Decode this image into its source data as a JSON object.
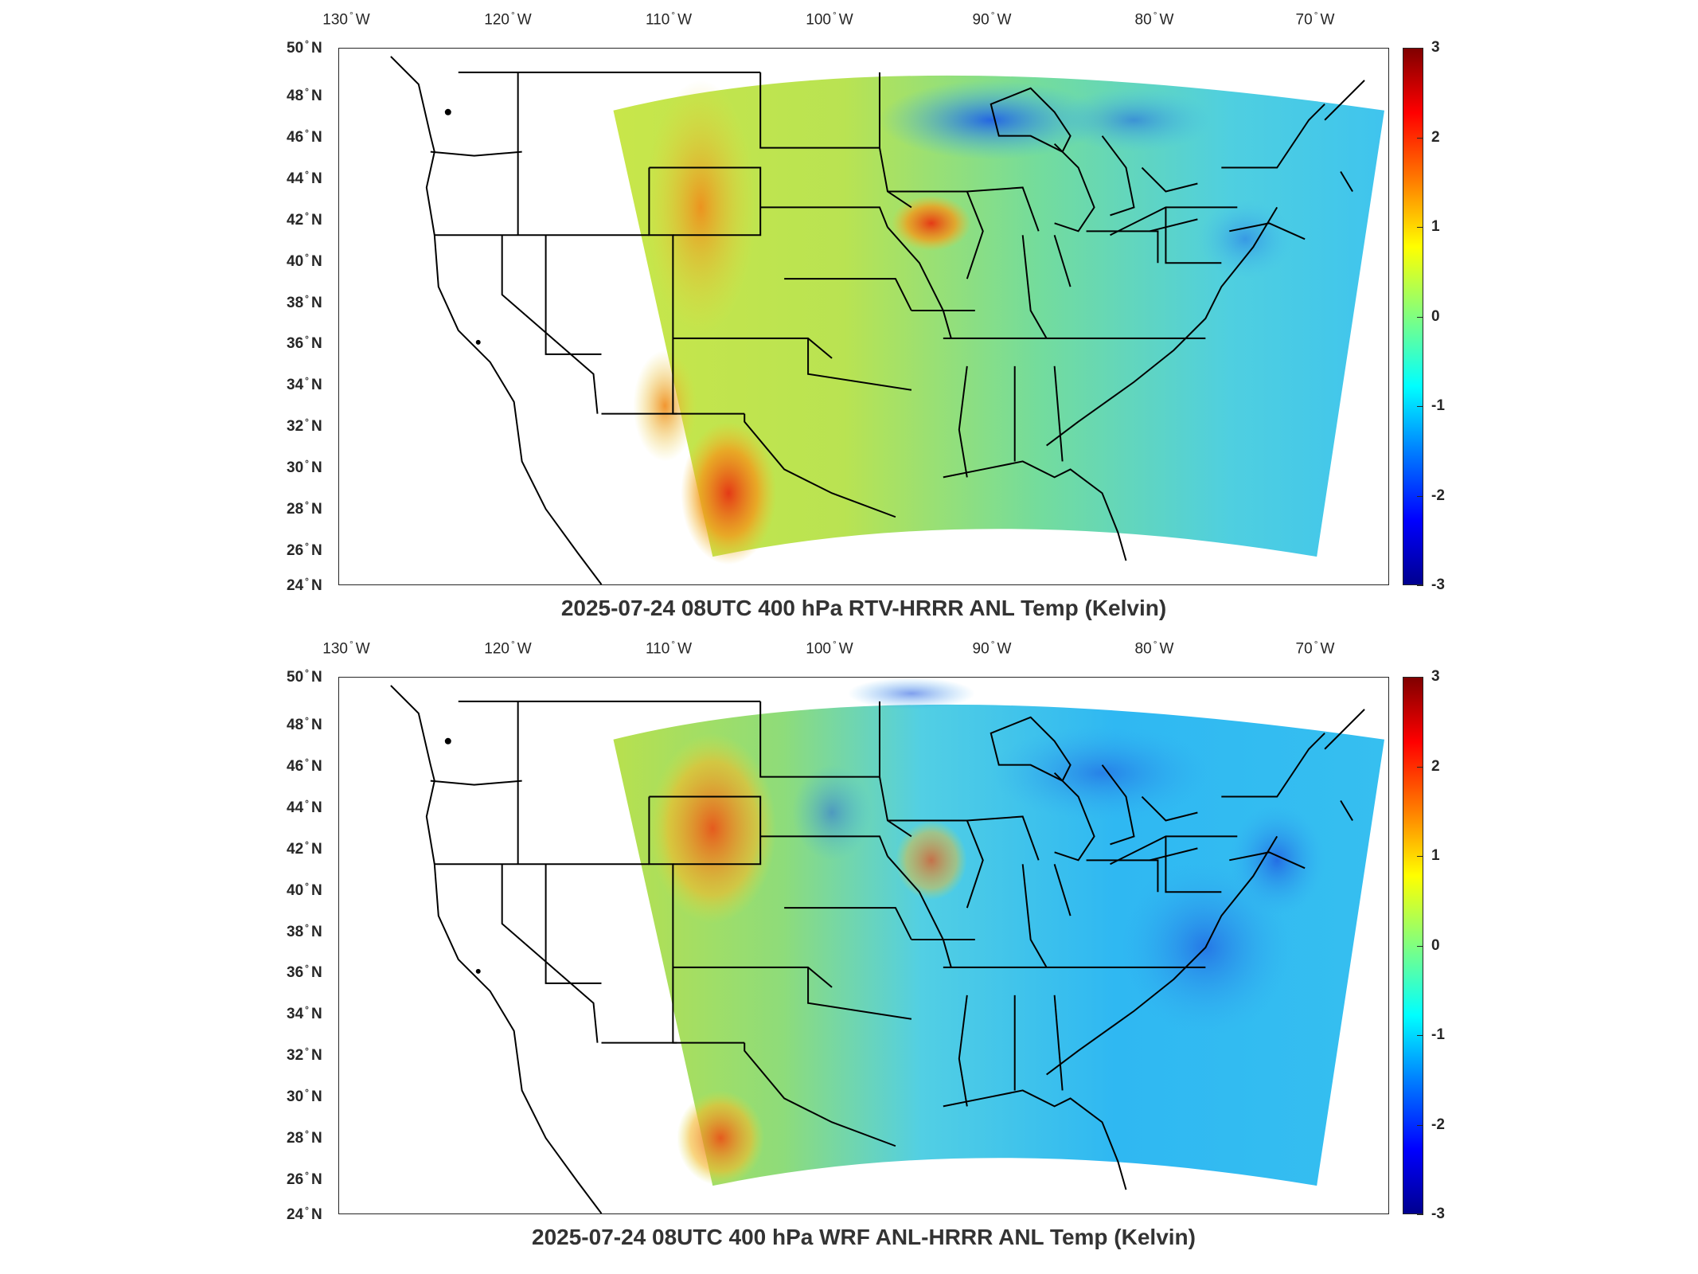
{
  "panels": [
    {
      "title": "2025-07-24 08UTC 400 hPa RTV-HRRR ANL Temp (Kelvin)"
    },
    {
      "title": "2025-07-24 08UTC 400 hPa WRF ANL-HRRR ANL Temp (Kelvin)"
    }
  ],
  "axes": {
    "lon_labels": [
      {
        "num": "130",
        "dir": "W"
      },
      {
        "num": "120",
        "dir": "W"
      },
      {
        "num": "110",
        "dir": "W"
      },
      {
        "num": "100",
        "dir": "W"
      },
      {
        "num": "90",
        "dir": "W"
      },
      {
        "num": "80",
        "dir": "W"
      },
      {
        "num": "70",
        "dir": "W"
      }
    ],
    "lat_labels": [
      {
        "num": "50",
        "dir": "N"
      },
      {
        "num": "48",
        "dir": "N"
      },
      {
        "num": "46",
        "dir": "N"
      },
      {
        "num": "44",
        "dir": "N"
      },
      {
        "num": "42",
        "dir": "N"
      },
      {
        "num": "40",
        "dir": "N"
      },
      {
        "num": "38",
        "dir": "N"
      },
      {
        "num": "36",
        "dir": "N"
      },
      {
        "num": "34",
        "dir": "N"
      },
      {
        "num": "32",
        "dir": "N"
      },
      {
        "num": "30",
        "dir": "N"
      },
      {
        "num": "28",
        "dir": "N"
      },
      {
        "num": "26",
        "dir": "N"
      },
      {
        "num": "24",
        "dir": "N"
      }
    ],
    "colorbar_ticks": [
      "3",
      "2",
      "1",
      "0",
      "-1",
      "-2",
      "-3"
    ],
    "colorbar_range": [
      -3,
      3
    ],
    "colormap": "jet"
  },
  "colors": {
    "dark_blue": "#00008f",
    "blue": "#0000ff",
    "cyan": "#00ffff",
    "yellow": "#ffff00",
    "red": "#ff0000",
    "dark_red": "#800000",
    "field_green": "#7fe08a",
    "field_cyan": "#3fd0f0"
  }
}
